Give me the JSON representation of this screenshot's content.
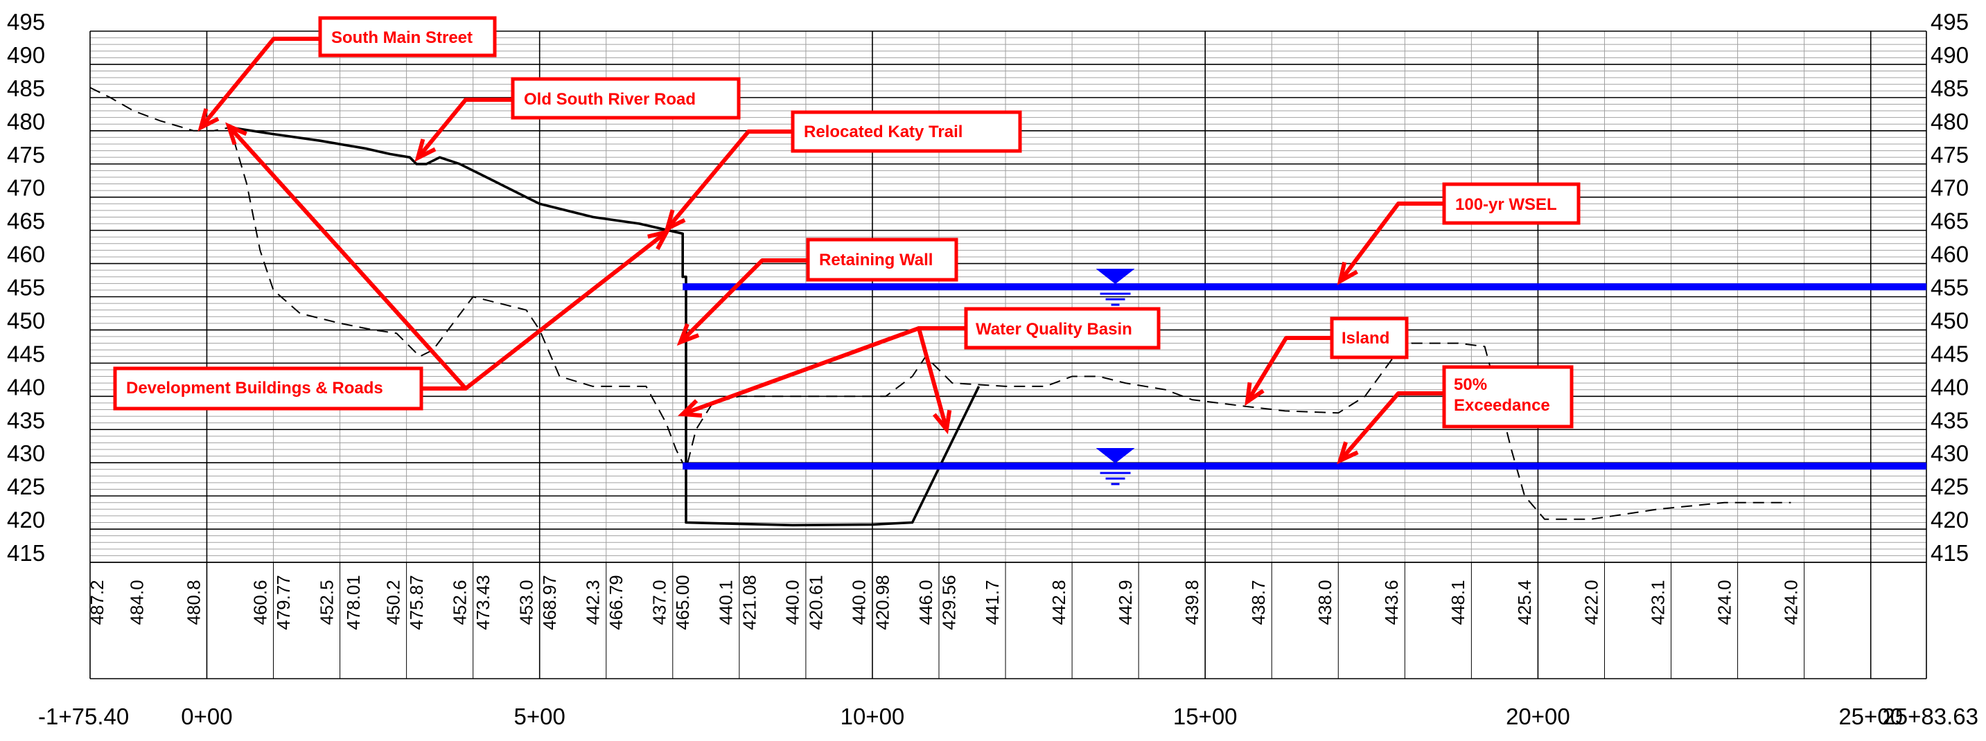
{
  "chart_data": {
    "type": "profile",
    "elevation_labels": [
      "495",
      "490",
      "485",
      "480",
      "475",
      "470",
      "465",
      "460",
      "455",
      "450",
      "445",
      "440",
      "435",
      "430",
      "425",
      "420",
      "415"
    ],
    "station_labels": [
      "-1+75.40",
      "0+00",
      "5+00",
      "10+00",
      "15+00",
      "20+00",
      "25+00",
      "25+83.63"
    ],
    "stations": [
      -175.4,
      0,
      500,
      1000,
      1500,
      2000,
      2500,
      2583.63
    ],
    "ylim": [
      415,
      495
    ],
    "xlim": [
      -175.4,
      2583.63
    ],
    "bottom_values": [
      {
        "station": -165,
        "label": "487.2"
      },
      {
        "station": -105,
        "label": "484.0"
      },
      {
        "station": -20,
        "label": "480.8"
      },
      {
        "station": 80,
        "label": "460.6"
      },
      {
        "station": 115,
        "label": "479.77"
      },
      {
        "station": 180,
        "label": "452.5"
      },
      {
        "station": 220,
        "label": "478.01"
      },
      {
        "station": 280,
        "label": "450.2"
      },
      {
        "station": 315,
        "label": "475.87"
      },
      {
        "station": 380,
        "label": "452.6"
      },
      {
        "station": 415,
        "label": "473.43"
      },
      {
        "station": 480,
        "label": "453.0"
      },
      {
        "station": 515,
        "label": "468.97"
      },
      {
        "station": 580,
        "label": "442.3"
      },
      {
        "station": 615,
        "label": "466.79"
      },
      {
        "station": 680,
        "label": "437.0"
      },
      {
        "station": 715,
        "label": "465.00"
      },
      {
        "station": 780,
        "label": "440.1"
      },
      {
        "station": 815,
        "label": "421.08"
      },
      {
        "station": 880,
        "label": "440.0"
      },
      {
        "station": 915,
        "label": "420.61"
      },
      {
        "station": 980,
        "label": "440.0"
      },
      {
        "station": 1015,
        "label": "420.98"
      },
      {
        "station": 1080,
        "label": "446.0"
      },
      {
        "station": 1115,
        "label": "429.56"
      },
      {
        "station": 1180,
        "label": "441.7"
      },
      {
        "station": 1280,
        "label": "442.8"
      },
      {
        "station": 1380,
        "label": "442.9"
      },
      {
        "station": 1480,
        "label": "439.8"
      },
      {
        "station": 1580,
        "label": "438.7"
      },
      {
        "station": 1680,
        "label": "438.0"
      },
      {
        "station": 1780,
        "label": "443.6"
      },
      {
        "station": 1880,
        "label": "448.1"
      },
      {
        "station": 1980,
        "label": "425.4"
      },
      {
        "station": 2080,
        "label": "422.0"
      },
      {
        "station": 2180,
        "label": "423.1"
      },
      {
        "station": 2280,
        "label": "424.0"
      },
      {
        "station": 2380,
        "label": "424.0"
      }
    ],
    "series": [
      {
        "style": "dashed",
        "color": "#000000",
        "points": [
          [
            -175.4,
            486.5
          ],
          [
            -145,
            485
          ],
          [
            -110,
            483
          ],
          [
            -70,
            481.5
          ],
          [
            -20,
            480
          ],
          [
            10,
            480
          ],
          [
            35,
            480.5
          ],
          [
            60,
            472
          ],
          [
            80,
            462
          ],
          [
            100,
            456
          ],
          [
            140,
            452.5
          ],
          [
            200,
            451
          ],
          [
            250,
            450
          ],
          [
            285,
            449.5
          ],
          [
            320,
            446
          ],
          [
            340,
            447
          ],
          [
            370,
            451
          ],
          [
            400,
            455
          ],
          [
            440,
            454
          ],
          [
            480,
            453
          ],
          [
            500,
            450
          ],
          [
            530,
            443
          ],
          [
            580,
            441.5
          ],
          [
            660,
            441.5
          ],
          [
            690,
            436
          ],
          [
            705,
            432
          ],
          [
            720,
            429
          ],
          [
            735,
            435
          ],
          [
            760,
            439
          ],
          [
            800,
            440
          ],
          [
            880,
            440
          ],
          [
            940,
            440
          ],
          [
            1020,
            440
          ],
          [
            1060,
            443
          ],
          [
            1080,
            446
          ],
          [
            1120,
            442
          ],
          [
            1200,
            441.5
          ],
          [
            1260,
            441.5
          ],
          [
            1300,
            443
          ],
          [
            1340,
            443
          ],
          [
            1380,
            442
          ],
          [
            1440,
            441
          ],
          [
            1480,
            439.5
          ],
          [
            1560,
            438.5
          ],
          [
            1620,
            437.8
          ],
          [
            1700,
            437.5
          ],
          [
            1740,
            440
          ],
          [
            1780,
            445.5
          ],
          [
            1810,
            448
          ],
          [
            1880,
            448
          ],
          [
            1920,
            447.5
          ],
          [
            1940,
            440
          ],
          [
            1960,
            432
          ],
          [
            1980,
            425
          ],
          [
            2010,
            421.5
          ],
          [
            2040,
            421.5
          ],
          [
            2080,
            421.5
          ],
          [
            2180,
            423
          ],
          [
            2280,
            424
          ],
          [
            2380,
            424
          ]
        ]
      },
      {
        "style": "solid",
        "color": "#000000",
        "points": [
          [
            35,
            480.5
          ],
          [
            100,
            479.5
          ],
          [
            170,
            478.5
          ],
          [
            240,
            477.3
          ],
          [
            275,
            476.5
          ],
          [
            305,
            476
          ],
          [
            315,
            475
          ],
          [
            330,
            475
          ],
          [
            350,
            476
          ],
          [
            380,
            475
          ],
          [
            420,
            473
          ],
          [
            500,
            469
          ],
          [
            580,
            467
          ],
          [
            650,
            466
          ],
          [
            715,
            464.5
          ],
          [
            715,
            458
          ],
          [
            720,
            458
          ],
          [
            720,
            421
          ],
          [
            880,
            420.6
          ],
          [
            1000,
            420.7
          ],
          [
            1060,
            421
          ],
          [
            1160,
            441.5
          ]
        ]
      }
    ],
    "water_levels": [
      {
        "name": "100-yr WSEL",
        "elevation": 456.5,
        "color": "#0000ff",
        "start_station": 715
      },
      {
        "name": "50% Exceedance",
        "elevation": 429.5,
        "color": "#0000ff",
        "start_station": 715
      }
    ],
    "water_symbol_station": 1365,
    "annotations": [
      {
        "text": "South Main Street"
      },
      {
        "text": "Old South River Road"
      },
      {
        "text": "Relocated Katy Trail"
      },
      {
        "text": "100-yr WSEL"
      },
      {
        "text": "Retaining Wall"
      },
      {
        "text": "Water Quality Basin"
      },
      {
        "text": "Island"
      },
      {
        "text": "50%"
      },
      {
        "text": "Exceedance"
      },
      {
        "text": "Development Buildings & Roads"
      }
    ],
    "colors": {
      "callout": "#ff0000",
      "water": "#0000ff",
      "grid": "#000000",
      "minor_grid": "#a0a0a0"
    }
  }
}
